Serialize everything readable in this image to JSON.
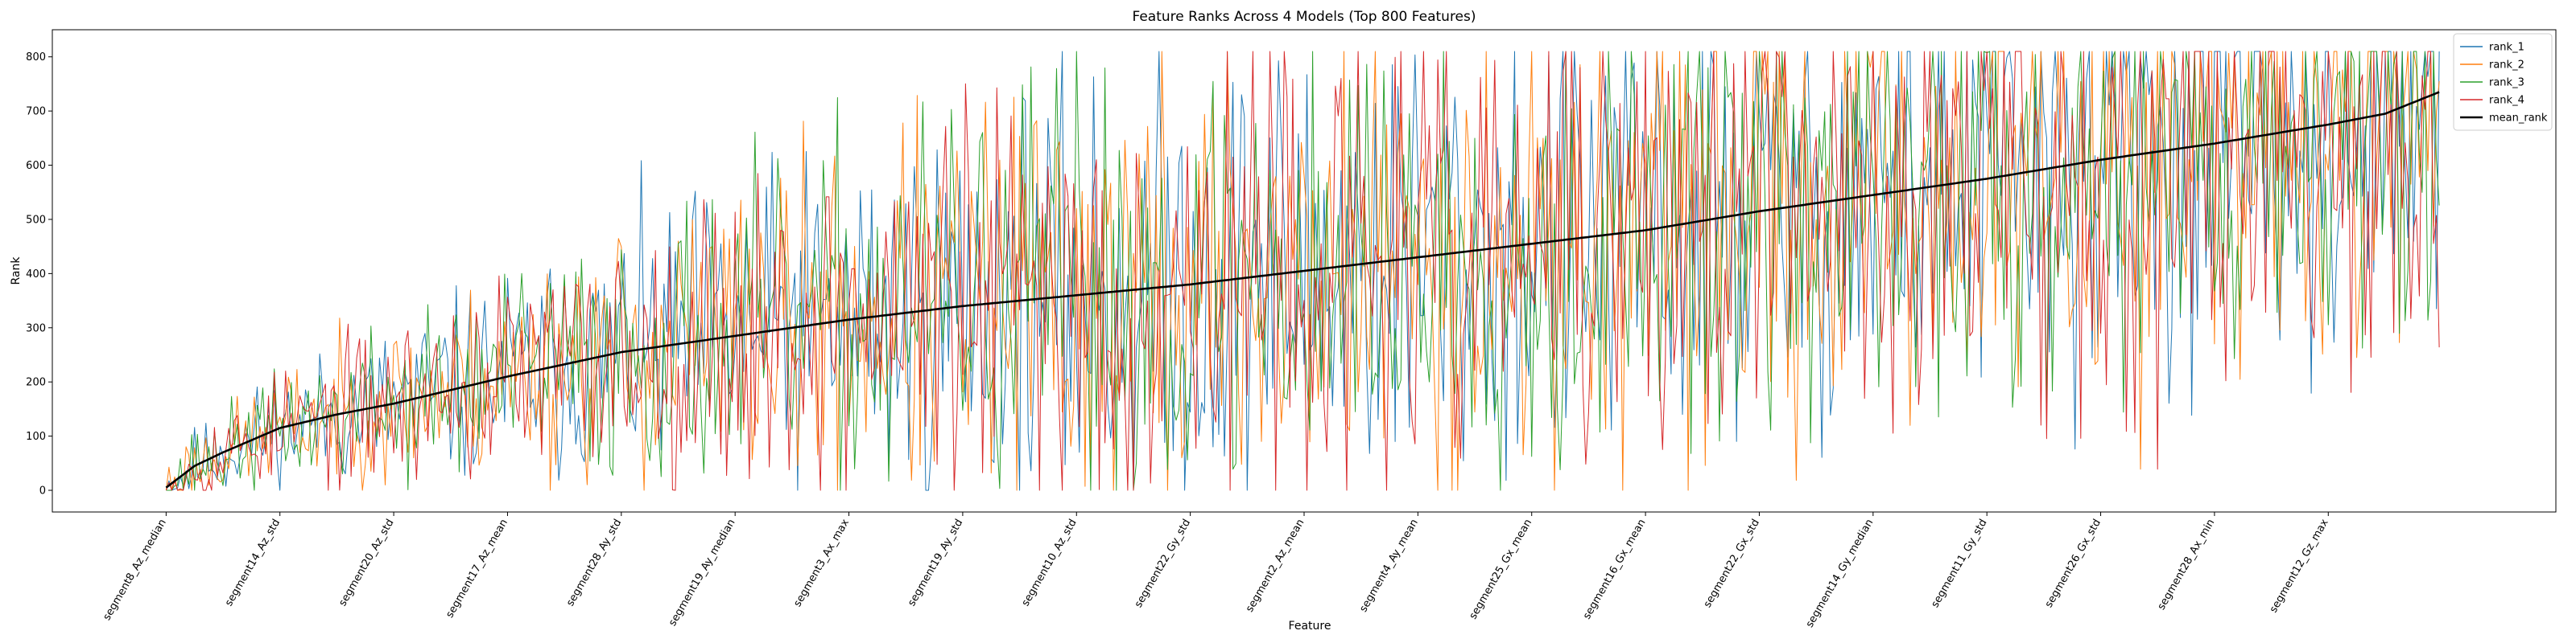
{
  "chart_data": {
    "type": "line",
    "title": "Feature Ranks Across 4 Models (Top 800 Features)",
    "xlabel": "Feature",
    "ylabel": "Rank",
    "ylim": [
      -40,
      850
    ],
    "yticks": [
      0,
      100,
      200,
      300,
      400,
      500,
      600,
      700,
      800
    ],
    "n_points": 800,
    "xlim": [
      -40,
      840
    ],
    "x_tick_positions": [
      0,
      40,
      80,
      120,
      160,
      200,
      240,
      280,
      320,
      360,
      400,
      440,
      480,
      520,
      560,
      600,
      640,
      680,
      720,
      760
    ],
    "x_tick_labels": [
      "segment8_Az_median",
      "segment14_Az_std",
      "segment20_Az_std",
      "segment17_Az_mean",
      "segment28_Ay_std",
      "segment19_Ay_median",
      "segment3_Ax_max",
      "segment19_Ay_std",
      "segment10_Az_std",
      "segment22_Gy_std",
      "segment2_Az_mean",
      "segment4_Ay_mean",
      "segment25_Gx_mean",
      "segment16_Gx_mean",
      "segment22_Gx_std",
      "segment14_Gy_median",
      "segment11_Gy_std",
      "segment26_Gx_std",
      "segment28_Ax_min",
      "segment12_Gz_max"
    ],
    "legend_position": "top-right",
    "grid": false,
    "mean_anchors": {
      "x": [
        0,
        5,
        10,
        20,
        40,
        60,
        80,
        100,
        120,
        160,
        200,
        240,
        280,
        320,
        360,
        400,
        440,
        480,
        520,
        560,
        600,
        640,
        680,
        720,
        760,
        780,
        799
      ],
      "y": [
        5,
        25,
        45,
        70,
        115,
        140,
        160,
        185,
        210,
        255,
        285,
        315,
        340,
        360,
        380,
        405,
        430,
        455,
        480,
        515,
        545,
        575,
        610,
        640,
        675,
        695,
        735
      ]
    },
    "series": [
      {
        "name": "rank_1",
        "color": "#1f77b4",
        "noise_seed": 11
      },
      {
        "name": "rank_2",
        "color": "#ff7f0e",
        "noise_seed": 23
      },
      {
        "name": "rank_3",
        "color": "#2ca02c",
        "noise_seed": 37
      },
      {
        "name": "rank_4",
        "color": "#d62728",
        "noise_seed": 53
      },
      {
        "name": "mean_rank",
        "color": "#000000"
      }
    ]
  }
}
